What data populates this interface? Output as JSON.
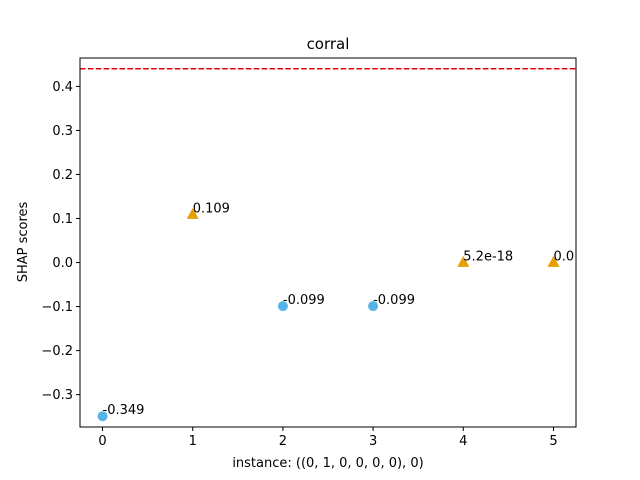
{
  "chart_data": {
    "type": "scatter",
    "title": "corral",
    "xlabel": "instance: ((0, 1, 0, 0, 0, 0), 0)",
    "ylabel": "SHAP scores",
    "xlim": [
      -0.25,
      5.25
    ],
    "ylim": [
      -0.3735,
      0.4645
    ],
    "xticks": [
      0,
      1,
      2,
      3,
      4,
      5
    ],
    "xtick_labels": [
      "0",
      "1",
      "2",
      "3",
      "4",
      "5"
    ],
    "yticks": [
      -0.3,
      -0.2,
      -0.1,
      0.0,
      0.1,
      0.2,
      0.3,
      0.4
    ],
    "ytick_labels": [
      "−0.3",
      "−0.2",
      "−0.1",
      "0.0",
      "0.1",
      "0.2",
      "0.3",
      "0.4"
    ],
    "grid": false,
    "reference_line": {
      "y": 0.44,
      "color": "#e8000b",
      "style": "dashed"
    },
    "points": [
      {
        "x": 0,
        "y": -0.349,
        "label": "-0.349",
        "marker": "circle",
        "color": "#56b4e9"
      },
      {
        "x": 1,
        "y": 0.109,
        "label": "0.109",
        "marker": "triangle",
        "color": "#e69f00"
      },
      {
        "x": 2,
        "y": -0.099,
        "label": "-0.099",
        "marker": "circle",
        "color": "#56b4e9"
      },
      {
        "x": 3,
        "y": -0.099,
        "label": "-0.099",
        "marker": "circle",
        "color": "#56b4e9"
      },
      {
        "x": 4,
        "y": 5.2e-18,
        "label": "5.2e-18",
        "marker": "triangle",
        "color": "#e69f00"
      },
      {
        "x": 5,
        "y": 0.0,
        "label": "0.0",
        "marker": "triangle",
        "color": "#e69f00"
      }
    ]
  }
}
